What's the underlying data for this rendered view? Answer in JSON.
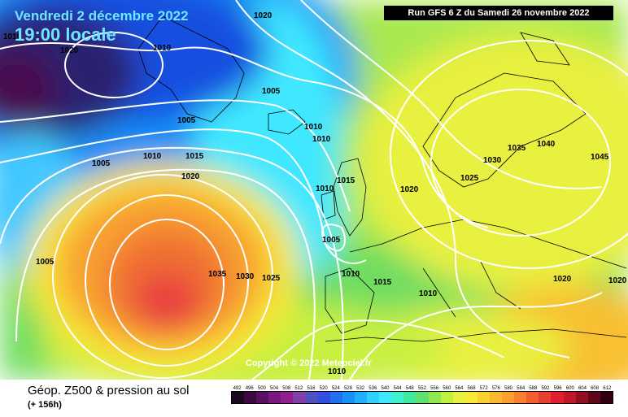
{
  "header": {
    "valid_date": "Vendredi 2 décembre 2022",
    "valid_time": "19:00 locale",
    "run_info": "Run GFS 6 Z du Samedi 26 novembre 2022"
  },
  "map": {
    "copyright": "Copyright © 2022 Meteociel.fr",
    "isobar_labels": [
      "1020",
      "1010",
      "1020",
      "1005",
      "1005",
      "1010",
      "1010",
      "1005",
      "1010",
      "1015",
      "1020",
      "1015",
      "1010",
      "1020",
      "1025",
      "1030",
      "1035",
      "1040",
      "1045",
      "1005",
      "1005",
      "1010",
      "1015",
      "1010",
      "1020",
      "1020",
      "1035",
      "1030",
      "1025",
      "1010",
      "1010"
    ],
    "colors": {
      "low_center": "#2a2070",
      "deep_blue": "#1450e0",
      "cyan": "#40e8ff",
      "green": "#70dd60",
      "yellow": "#f8f040",
      "orange": "#f8a030",
      "red": "#f05040",
      "coastline": "#000000",
      "isobar": "#ffffff"
    }
  },
  "footer": {
    "field_title": "Géop. Z500 & pression au sol",
    "forecast_horizon": "(+ 156h)"
  },
  "legend": {
    "ticks": [
      "492",
      "496",
      "500",
      "504",
      "508",
      "512",
      "516",
      "520",
      "524",
      "528",
      "532",
      "536",
      "540",
      "544",
      "548",
      "552",
      "556",
      "560",
      "564",
      "568",
      "572",
      "576",
      "580",
      "584",
      "588",
      "592",
      "596",
      "600",
      "604",
      "608",
      "612"
    ],
    "colors": [
      "#1a0a20",
      "#3a0a40",
      "#5a1060",
      "#7a1880",
      "#902090",
      "#8040a8",
      "#5050c0",
      "#3050e0",
      "#2070f0",
      "#1890f8",
      "#20b0ff",
      "#30d0ff",
      "#40e8ff",
      "#40f0d0",
      "#40e8a0",
      "#60e070",
      "#90e850",
      "#c0f040",
      "#e8f040",
      "#f8e838",
      "#f8d030",
      "#f8b830",
      "#f8a030",
      "#f88030",
      "#f06030",
      "#e84030",
      "#e02030",
      "#c01828",
      "#901020",
      "#600818",
      "#300010"
    ]
  }
}
